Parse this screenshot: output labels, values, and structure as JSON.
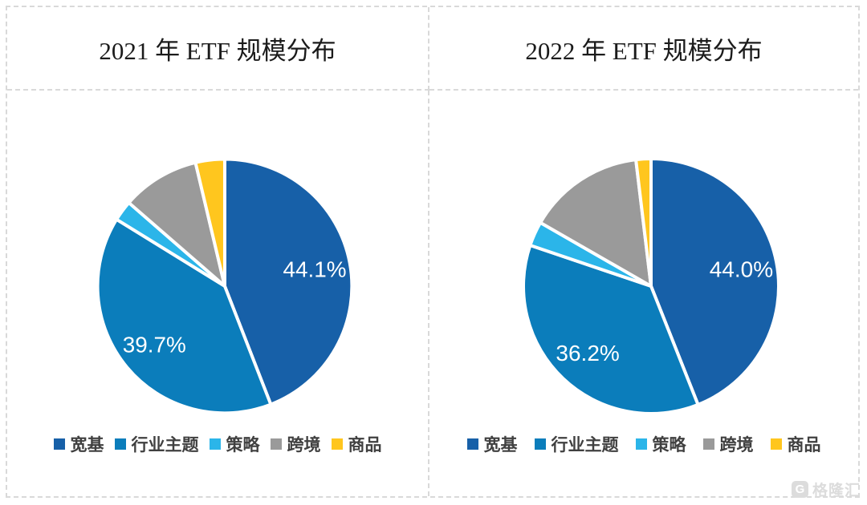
{
  "page": {
    "background": "#FFFFFF",
    "grid_border_color": "#D9D9D9"
  },
  "series_colors": [
    "#1760A8",
    "#0B7DBB",
    "#2BB5E9",
    "#9A9A9A",
    "#FFC61E"
  ],
  "data_label_color": "#FFFFFF",
  "legend_text_color": "#404040",
  "chart_data": [
    {
      "type": "pie",
      "title": "2021 年 ETF 规模分布",
      "categories": [
        "宽基",
        "行业主题",
        "策略",
        "跨境",
        "商品"
      ],
      "values": [
        44.1,
        39.7,
        2.6,
        9.9,
        3.7
      ],
      "data_labels": [
        "44.1%",
        "39.7%",
        "",
        "",
        ""
      ],
      "colors": [
        "#1760A8",
        "#0B7DBB",
        "#2BB5E9",
        "#9A9A9A",
        "#FFC61E"
      ],
      "legend_position": "bottom",
      "start_angle_deg": 0,
      "direction": "clockwise"
    },
    {
      "type": "pie",
      "title": "2022 年 ETF 规模分布",
      "categories": [
        "宽基",
        "行业主题",
        "策略",
        "跨境",
        "商品"
      ],
      "values": [
        44.0,
        36.2,
        3.1,
        14.8,
        1.9
      ],
      "data_labels": [
        "44.0%",
        "36.2%",
        "",
        "",
        ""
      ],
      "colors": [
        "#1760A8",
        "#0B7DBB",
        "#2BB5E9",
        "#9A9A9A",
        "#FFC61E"
      ],
      "legend_position": "bottom",
      "start_angle_deg": 0,
      "direction": "clockwise"
    }
  ],
  "watermark": {
    "logo_letter": "G",
    "text": "格隆汇"
  }
}
